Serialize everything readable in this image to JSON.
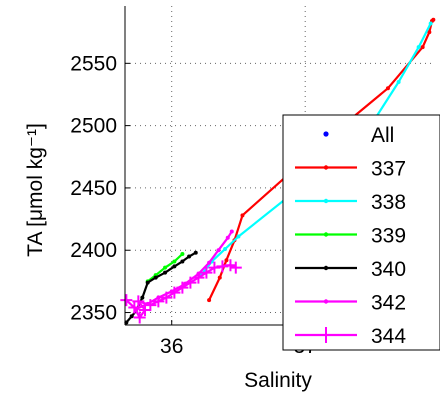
{
  "chart_data": {
    "type": "line",
    "title": "",
    "xlabel": "Salinity",
    "ylabel": "TA [μmol kg⁻¹]",
    "xlim": [
      35.65,
      37.95
    ],
    "ylim": [
      2340,
      2596
    ],
    "xticks": [
      36,
      37
    ],
    "xtick_labels": [
      "36",
      "37"
    ],
    "yticks": [
      2350,
      2400,
      2450,
      2500,
      2550
    ],
    "ytick_labels": [
      "2350",
      "2400",
      "2450",
      "2500",
      "2550"
    ],
    "grid": true,
    "legend_position": "bottom-right",
    "series": [
      {
        "name": "All",
        "color": "#0000ff",
        "marker": "dot",
        "line": false,
        "x": [],
        "y": []
      },
      {
        "name": "337",
        "color": "#ff0000",
        "marker": "dot",
        "line": true,
        "x": [
          36.28,
          36.36,
          36.41,
          36.47,
          36.53,
          37.35,
          37.62,
          37.88,
          37.93,
          37.95,
          37.96
        ],
        "y": [
          2360,
          2378,
          2392,
          2408,
          2428,
          2506,
          2530,
          2563,
          2575,
          2584,
          2585
        ]
      },
      {
        "name": "338",
        "color": "#00ffff",
        "marker": "dot",
        "line": true,
        "x": [
          36.22,
          36.3,
          36.4,
          36.5,
          37.05,
          37.52,
          37.7,
          37.85,
          37.94
        ],
        "y": [
          2380,
          2391,
          2401,
          2411,
          2458,
          2505,
          2535,
          2563,
          2582
        ]
      },
      {
        "name": "339",
        "color": "#00ff00",
        "marker": "dot",
        "line": true,
        "x": [
          35.82,
          35.88,
          35.95,
          36.02,
          36.08
        ],
        "y": [
          2375,
          2380,
          2386,
          2391,
          2397
        ]
      },
      {
        "name": "340",
        "color": "#000000",
        "marker": "dot",
        "line": true,
        "x": [
          35.66,
          35.7,
          35.73,
          35.78,
          35.82,
          35.88,
          35.95,
          36.02,
          36.08,
          36.13,
          36.18
        ],
        "y": [
          2342,
          2347,
          2351,
          2362,
          2374,
          2378,
          2382,
          2387,
          2391,
          2395,
          2398
        ]
      },
      {
        "name": "342",
        "color": "#ff00ff",
        "marker": "dot",
        "line": true,
        "x": [
          35.74,
          35.82,
          35.9,
          36.0,
          36.1,
          36.2,
          36.28,
          36.35,
          36.42,
          36.45
        ],
        "y": [
          2353,
          2357,
          2362,
          2367,
          2373,
          2381,
          2390,
          2400,
          2410,
          2415
        ]
      },
      {
        "name": "344",
        "color": "#ff00ff",
        "marker": "plus",
        "line": true,
        "x": [
          35.66,
          35.72,
          35.76,
          35.8,
          35.75,
          35.84,
          35.9,
          35.96,
          36.02,
          36.08,
          36.14,
          36.2,
          36.26,
          36.32,
          36.38,
          36.44,
          36.48
        ],
        "y": [
          2360,
          2354,
          2346,
          2352,
          2359,
          2356,
          2359,
          2362,
          2366,
          2370,
          2374,
          2378,
          2382,
          2386,
          2387,
          2388,
          2386
        ]
      }
    ]
  }
}
